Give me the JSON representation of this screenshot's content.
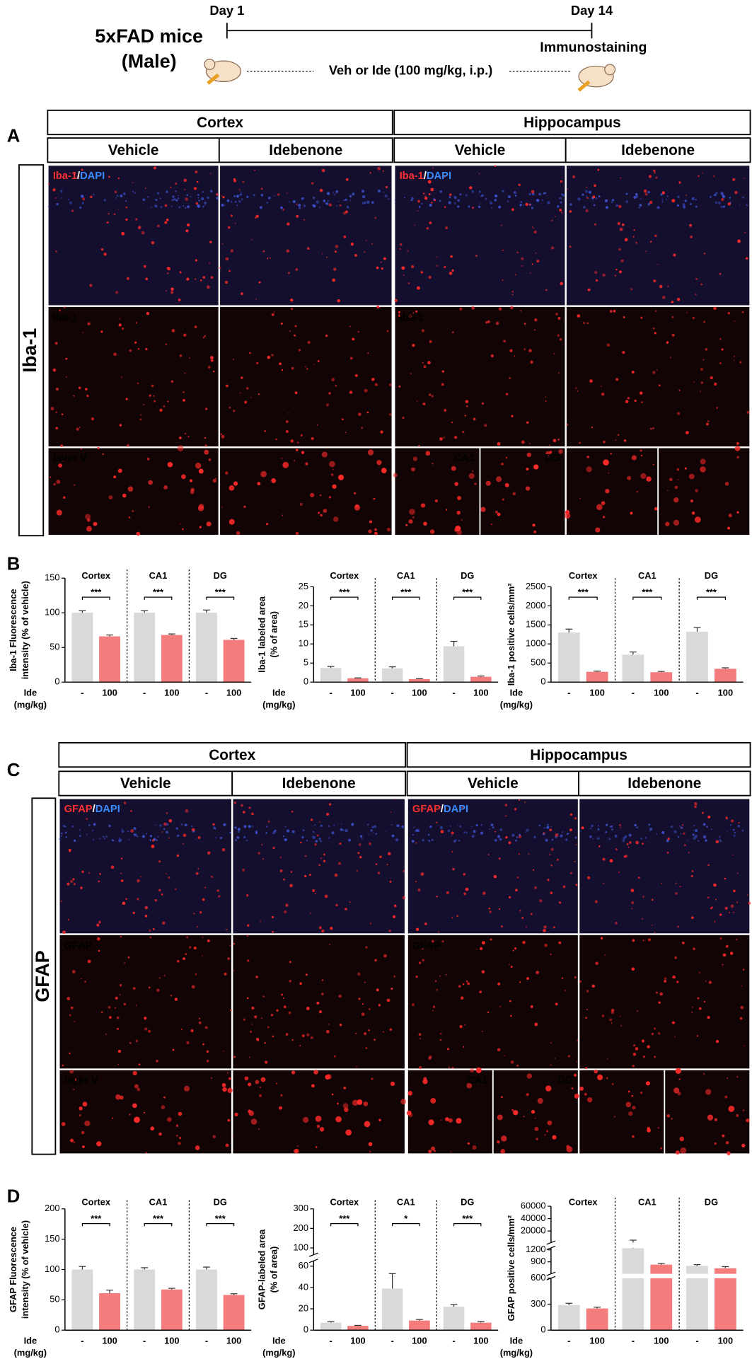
{
  "timeline": {
    "start": "Day 1",
    "end": "Day 14",
    "subject": [
      "5xFAD mice",
      "(Male)"
    ],
    "treatment": "Veh or Ide (100 mg/kg, i.p.)",
    "endpoint": "Immunostaining"
  },
  "panels": {
    "A": {
      "letter": "A",
      "regions": [
        "Cortex",
        "Hippocampus"
      ],
      "conditions": [
        "Vehicle",
        "Idebenone",
        "Vehicle",
        "Idebenone"
      ],
      "row_label": "Iba-1",
      "merge_label": [
        "Iba-1",
        "/",
        "DAPI"
      ],
      "single_label": "Iba-1",
      "zoom_labels": [
        "layer V",
        "CA1",
        "DG"
      ]
    },
    "B": {
      "letter": "B"
    },
    "C": {
      "letter": "C",
      "regions": [
        "Cortex",
        "Hippocampus"
      ],
      "conditions": [
        "Vehicle",
        "Idebenone",
        "Vehicle",
        "Idebenone"
      ],
      "row_label": "GFAP",
      "merge_label": [
        "GFAP",
        "/",
        "DAPI"
      ],
      "single_label": "GFAP",
      "zoom_labels": [
        "layer V",
        "CA1",
        "DG"
      ]
    },
    "D": {
      "letter": "D"
    }
  },
  "chart_data": [
    {
      "type": "bar",
      "ylabel": [
        "Iba-1 Fluorescence",
        "intensity (% of vehicle)"
      ],
      "xlabel": [
        "Ide",
        "(mg/kg)"
      ],
      "groups": [
        "Cortex",
        "CA1",
        "DG"
      ],
      "significance": [
        "***",
        "***",
        "***"
      ],
      "categories": [
        "-",
        "100",
        "-",
        "100",
        "-",
        "100"
      ],
      "values": [
        100,
        66,
        100,
        68,
        100,
        61
      ],
      "errors": [
        3,
        2,
        3,
        1.5,
        4,
        2
      ],
      "colors": [
        "#d9d9d9",
        "#f47c7c",
        "#d9d9d9",
        "#f47c7c",
        "#d9d9d9",
        "#f47c7c"
      ],
      "ylim": [
        0,
        150
      ],
      "yticks": [
        0,
        50,
        100,
        150
      ]
    },
    {
      "type": "bar",
      "ylabel": [
        "Iba-1 labeled area",
        "(% of area)"
      ],
      "xlabel": [
        "Ide",
        "(mg/kg)"
      ],
      "groups": [
        "Cortex",
        "CA1",
        "DG"
      ],
      "significance": [
        "***",
        "***",
        "***"
      ],
      "categories": [
        "-",
        "100",
        "-",
        "100",
        "-",
        "100"
      ],
      "values": [
        3.7,
        1.0,
        3.6,
        0.8,
        9.4,
        1.4
      ],
      "errors": [
        0.4,
        0.1,
        0.4,
        0.1,
        1.3,
        0.2
      ],
      "colors": [
        "#d9d9d9",
        "#f47c7c",
        "#d9d9d9",
        "#f47c7c",
        "#d9d9d9",
        "#f47c7c"
      ],
      "ylim": [
        0,
        25
      ],
      "yticks": [
        0,
        5,
        10,
        15,
        20,
        25
      ]
    },
    {
      "type": "bar",
      "ylabel": [
        "Iba-1 positive cells/mm²"
      ],
      "xlabel": [
        "Ide",
        "(mg/kg)"
      ],
      "groups": [
        "Cortex",
        "CA1",
        "DG"
      ],
      "significance": [
        "***",
        "***",
        "***"
      ],
      "categories": [
        "-",
        "100",
        "-",
        "100",
        "-",
        "100"
      ],
      "values": [
        1300,
        270,
        720,
        260,
        1320,
        350
      ],
      "errors": [
        90,
        20,
        70,
        20,
        110,
        25
      ],
      "colors": [
        "#d9d9d9",
        "#f47c7c",
        "#d9d9d9",
        "#f47c7c",
        "#d9d9d9",
        "#f47c7c"
      ],
      "ylim": [
        0,
        2500
      ],
      "yticks": [
        0,
        500,
        1000,
        1500,
        2000,
        2500
      ]
    },
    {
      "type": "bar",
      "ylabel": [
        "GFAP Fluorescence",
        "intensity (% of vehicle)"
      ],
      "xlabel": [
        "Ide",
        "(mg/kg)"
      ],
      "groups": [
        "Cortex",
        "CA1",
        "DG"
      ],
      "significance": [
        "***",
        "***",
        "***"
      ],
      "categories": [
        "-",
        "100",
        "-",
        "100",
        "-",
        "100"
      ],
      "values": [
        100,
        61,
        100,
        67,
        100,
        58
      ],
      "errors": [
        5,
        5,
        3,
        2,
        4,
        2
      ],
      "colors": [
        "#d9d9d9",
        "#f47c7c",
        "#d9d9d9",
        "#f47c7c",
        "#d9d9d9",
        "#f47c7c"
      ],
      "ylim": [
        0,
        200
      ],
      "yticks": [
        0,
        50,
        100,
        150,
        200
      ]
    },
    {
      "type": "bar",
      "ylabel": [
        "GFAP-labeled area",
        "(% of area)"
      ],
      "xlabel": [
        "Ide",
        "(mg/kg)"
      ],
      "groups": [
        "Cortex",
        "CA1",
        "DG"
      ],
      "significance": [
        "***",
        "*",
        "***"
      ],
      "categories": [
        "-",
        "100",
        "-",
        "100",
        "-",
        "100"
      ],
      "values": [
        7,
        4,
        39,
        9,
        22,
        7
      ],
      "errors": [
        1,
        0.5,
        14,
        1,
        2,
        1
      ],
      "colors": [
        "#d9d9d9",
        "#f47c7c",
        "#d9d9d9",
        "#f47c7c",
        "#d9d9d9",
        "#f47c7c"
      ],
      "segments": [
        {
          "ylim": [
            0,
            65
          ],
          "yticks": [
            0,
            20,
            40,
            60
          ]
        },
        {
          "ylim": [
            65,
            300
          ],
          "yticks": [
            100,
            200,
            300
          ]
        }
      ]
    },
    {
      "type": "bar",
      "ylabel": [
        "GFAP positive cells/mm²"
      ],
      "xlabel": [
        "Ide",
        "(mg/kg)"
      ],
      "groups": [
        "Cortex",
        "CA1",
        "DG"
      ],
      "categories": [
        "-",
        "100",
        "-",
        "100",
        "-",
        "100"
      ],
      "values": [
        290,
        250,
        1240,
        830,
        800,
        740
      ],
      "errors": [
        20,
        15,
        4000,
        30,
        30,
        40
      ],
      "colors": [
        "#d9d9d9",
        "#f47c7c",
        "#d9d9d9",
        "#f47c7c",
        "#d9d9d9",
        "#f47c7c"
      ],
      "segments": [
        {
          "ylim": [
            0,
            600
          ],
          "yticks": [
            0,
            300,
            600
          ]
        },
        {
          "ylim": [
            600,
            1250
          ],
          "yticks": [
            900,
            1200
          ]
        },
        {
          "ylim": [
            1250,
            60000
          ],
          "yticks": [
            20000,
            40000,
            60000
          ]
        }
      ]
    }
  ]
}
